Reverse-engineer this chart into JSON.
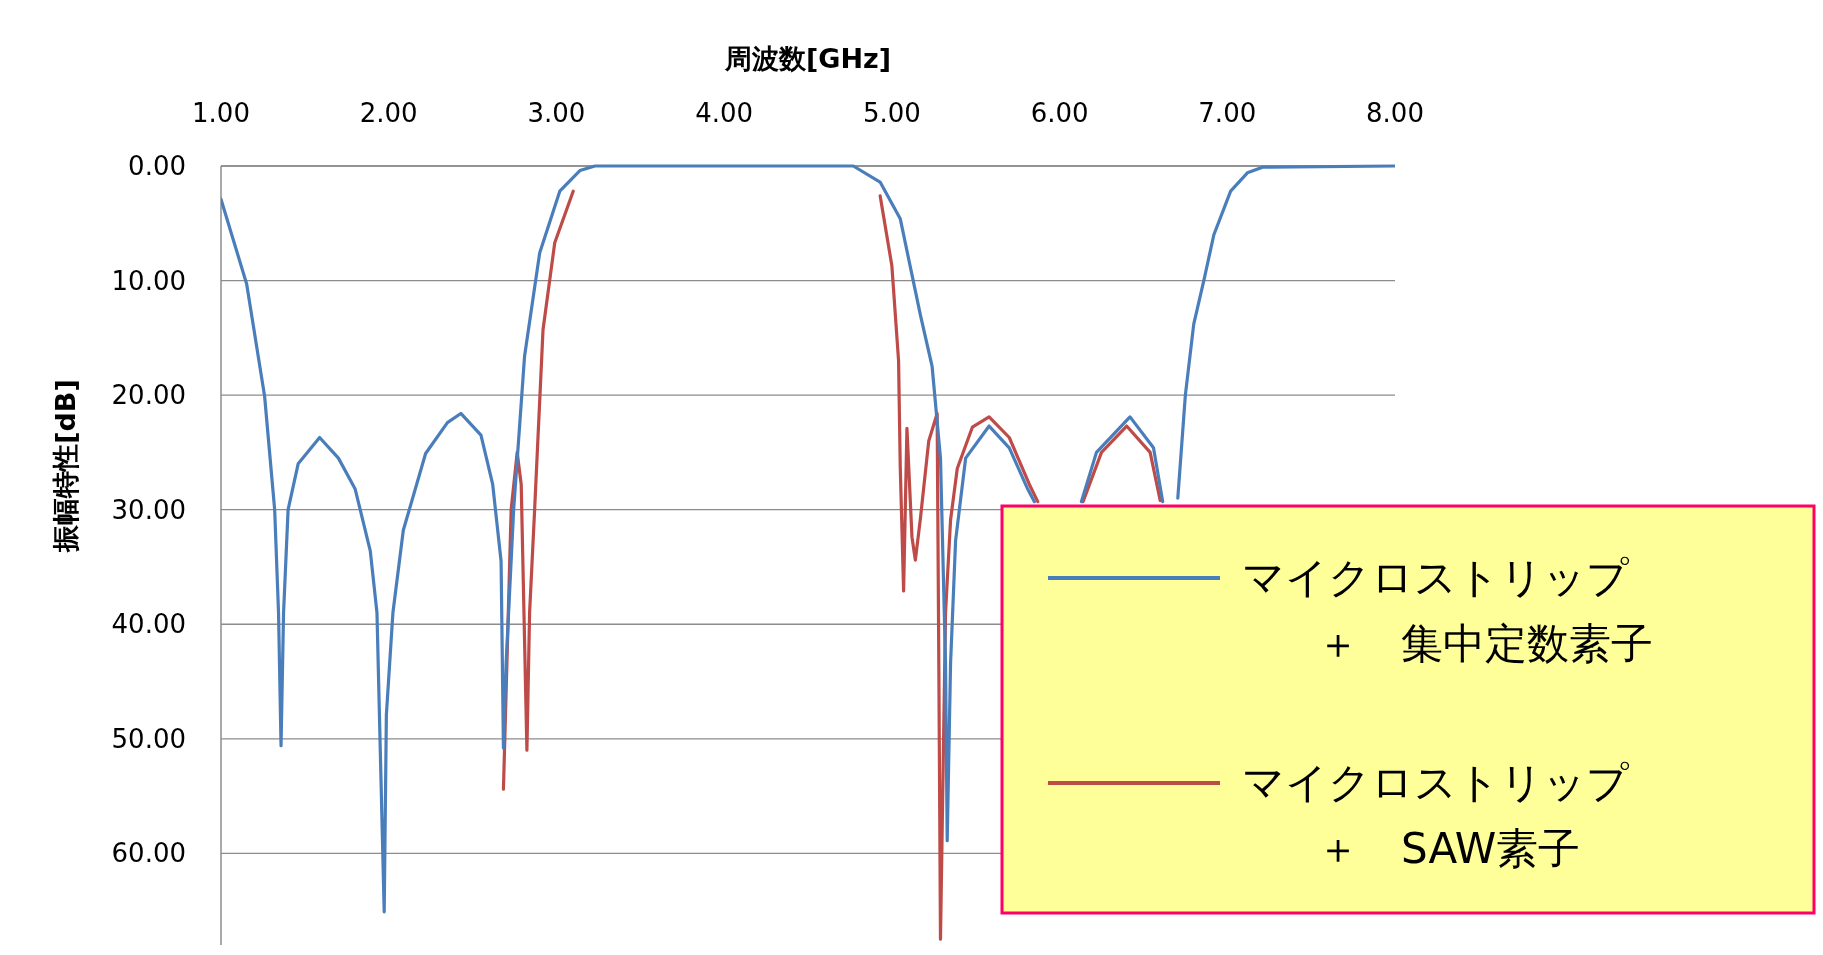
{
  "chart_data": {
    "type": "line",
    "xlabel": "周波数[GHz]",
    "ylabel": "振幅特性[dB]",
    "xlim": [
      1,
      8
    ],
    "xticks": [
      {
        "value": 1,
        "label": "1.00"
      },
      {
        "value": 2,
        "label": "2.00"
      },
      {
        "value": 3,
        "label": "3.00"
      },
      {
        "value": 4,
        "label": "4.00"
      },
      {
        "value": 5,
        "label": "5.00"
      },
      {
        "value": 6,
        "label": "6.00"
      },
      {
        "value": 7,
        "label": "7.00"
      },
      {
        "value": 8,
        "label": "8.00"
      }
    ],
    "ylim": [
      68,
      0
    ],
    "yticks": [
      {
        "value": 0,
        "label": "0.00"
      },
      {
        "value": 10,
        "label": "10.00"
      },
      {
        "value": 20,
        "label": "20.00"
      },
      {
        "value": 30,
        "label": "30.00"
      },
      {
        "value": 40,
        "label": "40.00"
      },
      {
        "value": 50,
        "label": "50.00"
      },
      {
        "value": 60,
        "label": "60.00"
      }
    ],
    "grid": "y",
    "legend": "bottom right",
    "marker": "none",
    "line_style": "solid",
    "series": [
      {
        "name": "マイクロストリップ＋　集中定数素子",
        "color": "#4a7ebb",
        "x": [
          1.0,
          1.153,
          1.26,
          1.32,
          1.343,
          1.358,
          1.373,
          1.4,
          1.46,
          1.588,
          1.7,
          1.8,
          1.89,
          1.93,
          1.973,
          1.986,
          2.025,
          2.087,
          2.22,
          2.35,
          2.43,
          2.55,
          2.62,
          2.67,
          2.684,
          2.7,
          2.745,
          2.81,
          2.9,
          3.02,
          3.14,
          3.23,
          4.77,
          4.93,
          5.05,
          5.17,
          5.24,
          5.29,
          5.32,
          5.33,
          5.35,
          5.38,
          5.44,
          5.58,
          5.7,
          5.81,
          5.85,
          null,
          6.13,
          6.22,
          6.42,
          6.56,
          6.615,
          null,
          6.705,
          6.75,
          6.8,
          6.86,
          6.92,
          7.02,
          7.12,
          7.21,
          8.0
        ],
        "values": [
          2.9,
          10.3,
          20.1,
          30,
          39,
          50.6,
          39,
          30,
          26,
          23.7,
          25.5,
          28.2,
          33.6,
          39,
          65.1,
          47.9,
          39,
          31.8,
          25.1,
          22.4,
          21.6,
          23.5,
          27.8,
          34.5,
          50.8,
          43.4,
          30,
          16.6,
          7.6,
          2.2,
          0.4,
          0,
          0,
          1.4,
          4.6,
          13,
          17.5,
          25.5,
          43.4,
          58.9,
          43.4,
          32.7,
          25.5,
          22.7,
          24.6,
          28.2,
          29.3,
          null,
          29.3,
          25,
          21.9,
          24.6,
          29.3,
          null,
          29.0,
          20,
          13.8,
          10,
          6,
          2.2,
          0.6,
          0.1,
          0
        ]
      },
      {
        "name": "マイクロストリップ＋　SAW素子",
        "color": "#be4b48",
        "x": [
          2.684,
          2.73,
          2.766,
          2.79,
          2.824,
          2.84,
          2.87,
          2.92,
          2.99,
          3.1,
          null,
          4.93,
          5.0,
          5.04,
          5.05,
          5.07,
          5.09,
          5.12,
          5.14,
          5.17,
          5.22,
          5.27,
          5.28,
          5.29,
          5.32,
          5.35,
          5.39,
          5.48,
          5.58,
          5.7,
          5.82,
          5.87,
          null,
          6.14,
          6.25,
          6.4,
          6.54,
          6.6
        ],
        "values": [
          54.4,
          30,
          25,
          27.8,
          51,
          39,
          30,
          14.3,
          6.7,
          2.2,
          null,
          2.6,
          8.7,
          17,
          26.2,
          37.1,
          22.9,
          32.4,
          34.4,
          30.8,
          24,
          21.6,
          43.4,
          67.5,
          39,
          30.9,
          26.4,
          22.8,
          21.9,
          23.7,
          27.8,
          29.3,
          null,
          29.3,
          25,
          22.7,
          25,
          29.2
        ]
      }
    ]
  }
}
